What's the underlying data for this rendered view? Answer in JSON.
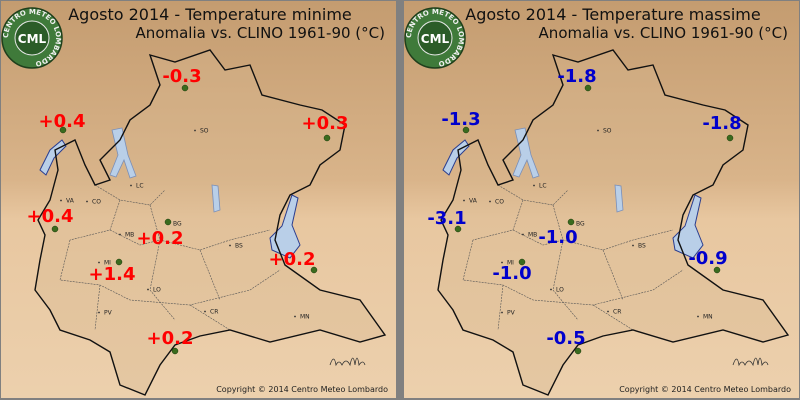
{
  "panels": [
    {
      "title": "Agosto 2014 - Temperature minime",
      "subtitle": "Anomalia vs. CLINO 1961-90 (°C)",
      "color": "#ff0000",
      "anomalies": [
        "-0.3",
        "+0.4",
        "+0.3",
        "+0.4",
        "+0.2",
        "+0.2",
        "+1.4",
        "+0.2"
      ],
      "copyright": "Copyright © 2014 Centro Meteo Lombardo"
    },
    {
      "title": "Agosto 2014 - Temperature massime",
      "subtitle": "Anomalia vs. CLINO 1961-90 (°C)",
      "color": "#0000cc",
      "anomalies": [
        "-1.8",
        "-1.3",
        "-1.8",
        "-3.1",
        "-1.0",
        "-0.9",
        "-1.0",
        "-0.5"
      ],
      "copyright": "Copyright © 2014 Centro Meteo Lombardo"
    }
  ],
  "cities": [
    "SO",
    "VA",
    "CO",
    "LC",
    "BG",
    "MB",
    "BS",
    "MI",
    "LO",
    "PV",
    "CR",
    "MN"
  ],
  "logo": {
    "text": "CML",
    "ring": "CENTRO METEO LOMBARDO"
  }
}
